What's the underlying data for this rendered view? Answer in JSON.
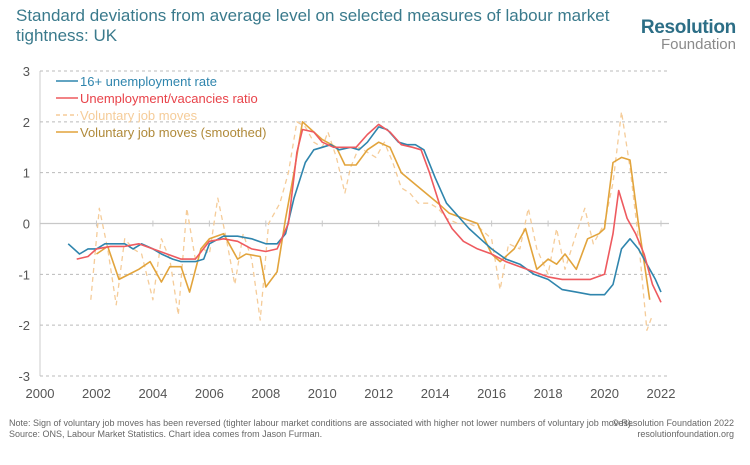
{
  "header": {
    "title": "Standard deviations from average level on selected measures of labour market tightness: UK",
    "logo_main": "Resolution",
    "logo_sub": "Foundation"
  },
  "footer": {
    "note": "Note: Sign of voluntary job moves has been reversed (tighter labour market conditions are associated with higher not lower numbers of voluntary job moves).",
    "source": "Source: ONS, Labour Market Statistics. Chart idea comes from Jason Furman.",
    "copyright": "© Resolution Foundation 2022",
    "website": "resolutionfoundation.org"
  },
  "chart_data": {
    "type": "line",
    "title": "Standard deviations from average level on selected measures of labour market tightness: UK",
    "xlabel": "",
    "ylabel": "",
    "xlim": [
      2000,
      2022
    ],
    "ylim": [
      -3,
      3
    ],
    "x_ticks": [
      "2000",
      "2002",
      "2004",
      "2006",
      "2008",
      "2010",
      "2012",
      "2014",
      "2016",
      "2018",
      "2020",
      "2022"
    ],
    "y_ticks": [
      "3",
      "2",
      "1",
      "0",
      "-1",
      "-2",
      "-3"
    ],
    "grid": true,
    "legend_position": "top-left",
    "series": [
      {
        "name": "16+ unemployment rate",
        "color": "#2f85ad",
        "style": "solid",
        "points": [
          [
            2001.0,
            -0.4
          ],
          [
            2001.4,
            -0.6
          ],
          [
            2001.7,
            -0.5
          ],
          [
            2002.0,
            -0.5
          ],
          [
            2002.3,
            -0.4
          ],
          [
            2002.6,
            -0.4
          ],
          [
            2003.0,
            -0.4
          ],
          [
            2003.3,
            -0.5
          ],
          [
            2003.6,
            -0.4
          ],
          [
            2004.0,
            -0.5
          ],
          [
            2004.3,
            -0.6
          ],
          [
            2004.7,
            -0.7
          ],
          [
            2005.0,
            -0.75
          ],
          [
            2005.5,
            -0.75
          ],
          [
            2005.8,
            -0.7
          ],
          [
            2006.0,
            -0.4
          ],
          [
            2006.5,
            -0.25
          ],
          [
            2007.0,
            -0.25
          ],
          [
            2007.5,
            -0.3
          ],
          [
            2008.0,
            -0.4
          ],
          [
            2008.4,
            -0.4
          ],
          [
            2008.7,
            -0.2
          ],
          [
            2009.0,
            0.5
          ],
          [
            2009.4,
            1.2
          ],
          [
            2009.7,
            1.45
          ],
          [
            2010.0,
            1.5
          ],
          [
            2010.3,
            1.55
          ],
          [
            2010.6,
            1.45
          ],
          [
            2011.0,
            1.5
          ],
          [
            2011.3,
            1.45
          ],
          [
            2011.6,
            1.6
          ],
          [
            2012.0,
            1.9
          ],
          [
            2012.3,
            1.85
          ],
          [
            2012.7,
            1.6
          ],
          [
            2013.0,
            1.55
          ],
          [
            2013.3,
            1.55
          ],
          [
            2013.6,
            1.45
          ],
          [
            2014.0,
            0.9
          ],
          [
            2014.4,
            0.4
          ],
          [
            2014.8,
            0.15
          ],
          [
            2015.2,
            -0.1
          ],
          [
            2015.6,
            -0.3
          ],
          [
            2016.0,
            -0.5
          ],
          [
            2016.5,
            -0.7
          ],
          [
            2017.0,
            -0.8
          ],
          [
            2017.5,
            -1.0
          ],
          [
            2018.0,
            -1.1
          ],
          [
            2018.5,
            -1.3
          ],
          [
            2019.0,
            -1.35
          ],
          [
            2019.5,
            -1.4
          ],
          [
            2020.0,
            -1.4
          ],
          [
            2020.3,
            -1.2
          ],
          [
            2020.6,
            -0.5
          ],
          [
            2020.9,
            -0.3
          ],
          [
            2021.2,
            -0.5
          ],
          [
            2021.5,
            -0.8
          ],
          [
            2021.8,
            -1.1
          ],
          [
            2022.0,
            -1.35
          ]
        ]
      },
      {
        "name": "Unemployment/vacancies ratio",
        "color": "#ee5a5f",
        "style": "solid",
        "points": [
          [
            2001.3,
            -0.7
          ],
          [
            2001.7,
            -0.65
          ],
          [
            2002.0,
            -0.5
          ],
          [
            2002.5,
            -0.45
          ],
          [
            2003.0,
            -0.45
          ],
          [
            2003.5,
            -0.4
          ],
          [
            2004.0,
            -0.5
          ],
          [
            2004.5,
            -0.6
          ],
          [
            2005.0,
            -0.7
          ],
          [
            2005.5,
            -0.7
          ],
          [
            2006.0,
            -0.35
          ],
          [
            2006.5,
            -0.3
          ],
          [
            2007.0,
            -0.35
          ],
          [
            2007.5,
            -0.5
          ],
          [
            2008.0,
            -0.55
          ],
          [
            2008.4,
            -0.5
          ],
          [
            2008.8,
            0.0
          ],
          [
            2009.1,
            1.4
          ],
          [
            2009.3,
            1.85
          ],
          [
            2009.7,
            1.8
          ],
          [
            2010.0,
            1.6
          ],
          [
            2010.4,
            1.5
          ],
          [
            2010.8,
            1.5
          ],
          [
            2011.2,
            1.5
          ],
          [
            2011.6,
            1.75
          ],
          [
            2012.0,
            1.95
          ],
          [
            2012.4,
            1.8
          ],
          [
            2012.8,
            1.55
          ],
          [
            2013.2,
            1.5
          ],
          [
            2013.5,
            1.45
          ],
          [
            2013.8,
            1.0
          ],
          [
            2014.2,
            0.3
          ],
          [
            2014.6,
            -0.1
          ],
          [
            2015.0,
            -0.35
          ],
          [
            2015.5,
            -0.5
          ],
          [
            2016.0,
            -0.6
          ],
          [
            2016.5,
            -0.75
          ],
          [
            2017.0,
            -0.85
          ],
          [
            2017.5,
            -0.95
          ],
          [
            2018.0,
            -1.05
          ],
          [
            2018.5,
            -1.1
          ],
          [
            2019.0,
            -1.1
          ],
          [
            2019.5,
            -1.1
          ],
          [
            2020.0,
            -1.0
          ],
          [
            2020.3,
            -0.2
          ],
          [
            2020.5,
            0.65
          ],
          [
            2020.8,
            0.1
          ],
          [
            2021.1,
            -0.2
          ],
          [
            2021.4,
            -0.6
          ],
          [
            2021.7,
            -1.2
          ],
          [
            2022.0,
            -1.55
          ]
        ]
      },
      {
        "name": "Voluntary job moves",
        "color": "#f5cc99",
        "style": "dashed",
        "points": [
          [
            2001.8,
            -1.5
          ],
          [
            2002.1,
            0.3
          ],
          [
            2002.4,
            -0.5
          ],
          [
            2002.7,
            -1.6
          ],
          [
            2003.0,
            -0.3
          ],
          [
            2003.3,
            -0.5
          ],
          [
            2003.6,
            -0.6
          ],
          [
            2004.0,
            -1.5
          ],
          [
            2004.3,
            -0.3
          ],
          [
            2004.6,
            -0.7
          ],
          [
            2004.9,
            -1.8
          ],
          [
            2005.2,
            0.3
          ],
          [
            2005.5,
            -0.7
          ],
          [
            2005.8,
            -0.5
          ],
          [
            2006.0,
            -0.6
          ],
          [
            2006.3,
            0.5
          ],
          [
            2006.6,
            -0.3
          ],
          [
            2006.9,
            -1.2
          ],
          [
            2007.2,
            -0.2
          ],
          [
            2007.5,
            -0.7
          ],
          [
            2007.8,
            -1.9
          ],
          [
            2008.1,
            0.0
          ],
          [
            2008.5,
            0.4
          ],
          [
            2008.8,
            1.0
          ],
          [
            2009.1,
            2.0
          ],
          [
            2009.4,
            1.9
          ],
          [
            2009.7,
            1.6
          ],
          [
            2010.0,
            1.5
          ],
          [
            2010.2,
            1.8
          ],
          [
            2010.5,
            1.3
          ],
          [
            2010.8,
            0.6
          ],
          [
            2011.0,
            1.1
          ],
          [
            2011.3,
            1.5
          ],
          [
            2011.6,
            1.4
          ],
          [
            2011.9,
            1.3
          ],
          [
            2012.2,
            1.6
          ],
          [
            2012.5,
            1.2
          ],
          [
            2012.8,
            0.7
          ],
          [
            2013.1,
            0.6
          ],
          [
            2013.4,
            0.4
          ],
          [
            2013.8,
            0.4
          ],
          [
            2014.1,
            0.3
          ],
          [
            2014.4,
            0.1
          ],
          [
            2014.8,
            0.0
          ],
          [
            2015.2,
            0.0
          ],
          [
            2015.6,
            -0.1
          ],
          [
            2016.0,
            -0.3
          ],
          [
            2016.3,
            -1.3
          ],
          [
            2016.6,
            -0.4
          ],
          [
            2017.0,
            -0.5
          ],
          [
            2017.3,
            0.3
          ],
          [
            2017.6,
            -0.5
          ],
          [
            2018.0,
            -1.0
          ],
          [
            2018.3,
            -0.1
          ],
          [
            2018.6,
            -0.9
          ],
          [
            2019.0,
            -0.2
          ],
          [
            2019.3,
            0.3
          ],
          [
            2019.6,
            -0.4
          ],
          [
            2020.0,
            0.0
          ],
          [
            2020.3,
            0.8
          ],
          [
            2020.6,
            2.2
          ],
          [
            2020.9,
            1.1
          ],
          [
            2021.2,
            -0.3
          ],
          [
            2021.5,
            -2.1
          ],
          [
            2021.7,
            -1.8
          ]
        ]
      },
      {
        "name": "Voluntary job moves (smoothed)",
        "color": "#e2a43c",
        "style": "solid",
        "points": [
          [
            2002.0,
            -0.6
          ],
          [
            2002.4,
            -0.45
          ],
          [
            2002.8,
            -1.1
          ],
          [
            2003.5,
            -0.9
          ],
          [
            2003.9,
            -0.75
          ],
          [
            2004.3,
            -1.15
          ],
          [
            2004.6,
            -0.85
          ],
          [
            2005.0,
            -0.85
          ],
          [
            2005.3,
            -1.35
          ],
          [
            2005.7,
            -0.5
          ],
          [
            2006.0,
            -0.3
          ],
          [
            2006.5,
            -0.2
          ],
          [
            2007.0,
            -0.7
          ],
          [
            2007.3,
            -0.6
          ],
          [
            2007.8,
            -0.65
          ],
          [
            2008.0,
            -1.25
          ],
          [
            2008.4,
            -0.95
          ],
          [
            2008.7,
            0.1
          ],
          [
            2009.0,
            1.0
          ],
          [
            2009.3,
            2.0
          ],
          [
            2009.7,
            1.8
          ],
          [
            2010.0,
            1.65
          ],
          [
            2010.5,
            1.5
          ],
          [
            2010.8,
            1.15
          ],
          [
            2011.2,
            1.15
          ],
          [
            2011.6,
            1.45
          ],
          [
            2012.0,
            1.6
          ],
          [
            2012.4,
            1.5
          ],
          [
            2012.8,
            1.0
          ],
          [
            2014.1,
            0.4
          ],
          [
            2014.5,
            0.2
          ],
          [
            2015.0,
            0.1
          ],
          [
            2015.5,
            0.0
          ],
          [
            2016.0,
            -0.6
          ],
          [
            2016.3,
            -0.75
          ],
          [
            2016.8,
            -0.5
          ],
          [
            2017.2,
            -0.1
          ],
          [
            2017.6,
            -0.9
          ],
          [
            2018.0,
            -0.7
          ],
          [
            2018.3,
            -0.8
          ],
          [
            2018.6,
            -0.6
          ],
          [
            2019.0,
            -0.9
          ],
          [
            2019.4,
            -0.3
          ],
          [
            2019.8,
            -0.2
          ],
          [
            2020.0,
            -0.1
          ],
          [
            2020.3,
            1.2
          ],
          [
            2020.6,
            1.3
          ],
          [
            2020.9,
            1.25
          ],
          [
            2021.2,
            0.0
          ],
          [
            2021.6,
            -1.5
          ]
        ]
      }
    ]
  }
}
